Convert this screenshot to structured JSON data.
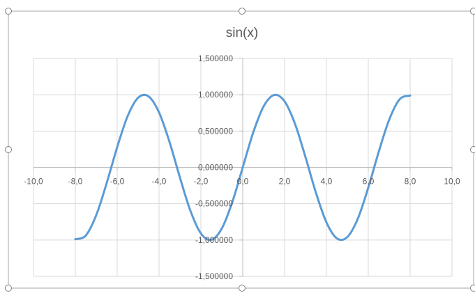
{
  "chart_data": {
    "type": "scatter",
    "title": "sin(x)",
    "xlim": [
      -10,
      10
    ],
    "ylim": [
      -1.5,
      1.5
    ],
    "x_ticks": [
      "-10,0",
      "-8,0",
      "-6,0",
      "-4,0",
      "-2,0",
      "0,0",
      "2,0",
      "4,0",
      "6,0",
      "8,0",
      "10,0"
    ],
    "y_ticks": [
      "1,500000",
      "1,000000",
      "0,500000",
      "0,000000",
      "-0,500000",
      "-1,000000",
      "-1,500000"
    ],
    "grid": true,
    "series": [
      {
        "color": "#5b9bd5",
        "x": [
          -8,
          -7.5,
          -7,
          -6.5,
          -6,
          -5.5,
          -5,
          -4.5,
          -4,
          -3.5,
          -3,
          -2.5,
          -2,
          -1.5,
          -1,
          -0.5,
          0,
          0.5,
          1,
          1.5,
          2,
          2.5,
          3,
          3.5,
          4,
          4.5,
          5,
          5.5,
          6,
          6.5,
          7,
          7.5,
          8
        ],
        "y": [
          -0.989,
          -0.938,
          -0.657,
          -0.215,
          0.279,
          0.706,
          0.959,
          0.978,
          0.757,
          0.351,
          -0.141,
          -0.598,
          -0.909,
          -0.997,
          -0.841,
          -0.479,
          0,
          0.479,
          0.841,
          0.997,
          0.909,
          0.598,
          0.141,
          -0.351,
          -0.757,
          -0.978,
          -0.959,
          -0.706,
          -0.279,
          0.215,
          0.657,
          0.938,
          0.989
        ]
      }
    ]
  }
}
